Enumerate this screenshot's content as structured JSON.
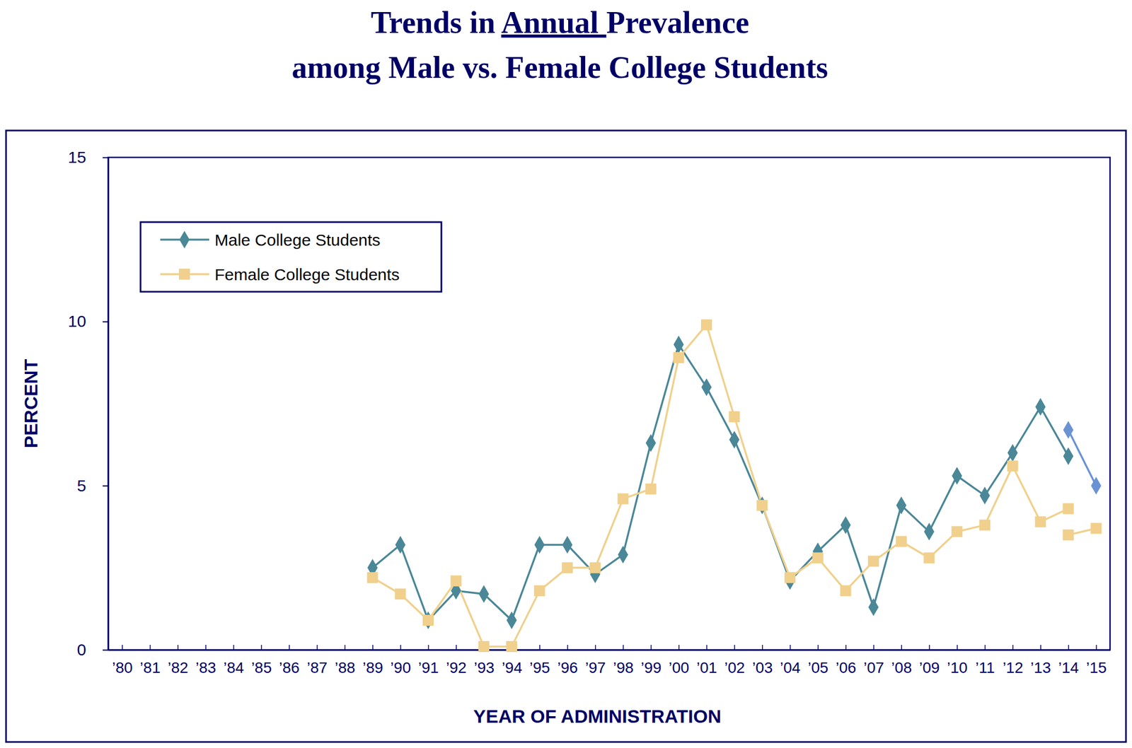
{
  "chart_data": {
    "type": "line",
    "title": [
      "Trends in Annual Prevalence",
      "among Male vs. Female College Students"
    ],
    "x_label": "YEAR OF ADMINISTRATION",
    "y_label": "PERCENT",
    "categories": [
      "’80",
      "’81",
      "’82",
      "’83",
      "’84",
      "’85",
      "’86",
      "’87",
      "’88",
      "’89",
      "’90",
      "’91",
      "’92",
      "’93",
      "’94",
      "’95",
      "’96",
      "’97",
      "’98",
      "’99",
      "’00",
      "’01",
      "’02",
      "’03",
      "’04",
      "’05",
      "’06",
      "’07",
      "’08",
      "’09",
      "’10",
      "’11",
      "’12",
      "’13",
      "’14",
      "’15"
    ],
    "ylim": [
      0,
      15
    ],
    "yticks": [
      0,
      5,
      10,
      15
    ],
    "legend": "upper left",
    "series": [
      {
        "name": "Male College Students",
        "color": "#4a8797",
        "marker": "diamond",
        "values": [
          null,
          null,
          null,
          null,
          null,
          null,
          null,
          null,
          null,
          2.5,
          3.2,
          0.9,
          1.8,
          1.7,
          0.9,
          3.2,
          3.2,
          2.3,
          2.9,
          6.3,
          9.3,
          8.0,
          6.4,
          4.4,
          2.1,
          3.0,
          3.8,
          1.3,
          4.4,
          3.6,
          5.3,
          4.7,
          6.0,
          7.4,
          5.9,
          null
        ]
      },
      {
        "name": "Female College Students",
        "color": "#f0d08c",
        "marker": "square",
        "values": [
          null,
          null,
          null,
          null,
          null,
          null,
          null,
          null,
          null,
          2.2,
          1.7,
          0.9,
          2.1,
          0.1,
          0.1,
          1.8,
          2.5,
          2.5,
          4.6,
          4.9,
          8.9,
          9.9,
          7.1,
          4.4,
          2.2,
          2.8,
          1.8,
          2.7,
          3.3,
          2.8,
          3.6,
          3.8,
          5.6,
          3.9,
          4.3,
          null
        ]
      },
      {
        "color": "#6a93d4",
        "marker": "diamond",
        "values": [
          null,
          null,
          null,
          null,
          null,
          null,
          null,
          null,
          null,
          null,
          null,
          null,
          null,
          null,
          null,
          null,
          null,
          null,
          null,
          null,
          null,
          null,
          null,
          null,
          null,
          null,
          null,
          null,
          null,
          null,
          null,
          null,
          null,
          null,
          6.7,
          5.0
        ]
      },
      {
        "color": "#f0d08c",
        "marker": "square",
        "values": [
          null,
          null,
          null,
          null,
          null,
          null,
          null,
          null,
          null,
          null,
          null,
          null,
          null,
          null,
          null,
          null,
          null,
          null,
          null,
          null,
          null,
          null,
          null,
          null,
          null,
          null,
          null,
          null,
          null,
          null,
          null,
          null,
          null,
          null,
          3.5,
          3.7
        ]
      }
    ]
  }
}
